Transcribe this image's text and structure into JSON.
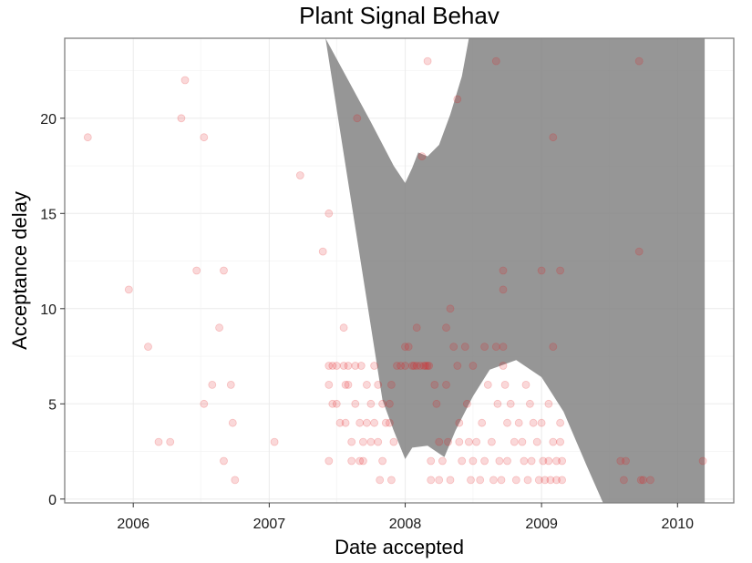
{
  "chart_data": {
    "type": "scatter",
    "title": "Plant Signal Behav",
    "xlabel": "Date accepted",
    "ylabel": "Acceptance delay",
    "x_ticks": [
      "2006",
      "2007",
      "2008",
      "2009",
      "2010"
    ],
    "y_ticks": [
      "0",
      "5",
      "10",
      "15",
      "20"
    ],
    "xlim": [
      "2005-07-01",
      "2010-06-01"
    ],
    "ylim": [
      -0.2,
      24.2
    ],
    "grid": true,
    "colors": {
      "points": "#e31a1c",
      "band": "#7f7f7f",
      "panel_border": "#7f7f7f",
      "grid": "#ebebeb"
    },
    "points": [
      [
        "2005-09-01",
        19
      ],
      [
        "2005-12-20",
        11
      ],
      [
        "2006-02-10",
        8
      ],
      [
        "2006-03-10",
        3
      ],
      [
        "2006-04-10",
        3
      ],
      [
        "2006-05-10",
        20
      ],
      [
        "2006-05-20",
        22
      ],
      [
        "2006-06-20",
        12
      ],
      [
        "2006-07-10",
        19
      ],
      [
        "2006-07-10",
        5
      ],
      [
        "2006-08-01",
        6
      ],
      [
        "2006-08-20",
        9
      ],
      [
        "2006-09-01",
        12
      ],
      [
        "2006-09-01",
        2
      ],
      [
        "2006-09-20",
        6
      ],
      [
        "2006-09-25",
        4
      ],
      [
        "2006-10-01",
        1
      ],
      [
        "2007-01-15",
        3
      ],
      [
        "2007-03-25",
        17
      ],
      [
        "2007-05-25",
        13
      ],
      [
        "2007-06-10",
        15
      ],
      [
        "2007-06-10",
        7
      ],
      [
        "2007-06-10",
        6
      ],
      [
        "2007-06-10",
        2
      ],
      [
        "2007-06-20",
        7
      ],
      [
        "2007-06-20",
        5
      ],
      [
        "2007-07-01",
        7
      ],
      [
        "2007-07-01",
        5
      ],
      [
        "2007-07-10",
        4
      ],
      [
        "2007-07-20",
        9
      ],
      [
        "2007-07-20",
        7
      ],
      [
        "2007-07-25",
        6
      ],
      [
        "2007-07-25",
        4
      ],
      [
        "2007-08-01",
        7
      ],
      [
        "2007-08-01",
        6
      ],
      [
        "2007-08-10",
        3
      ],
      [
        "2007-08-10",
        2
      ],
      [
        "2007-08-20",
        7
      ],
      [
        "2007-08-20",
        5
      ],
      [
        "2007-08-25",
        20
      ],
      [
        "2007-09-01",
        4
      ],
      [
        "2007-09-01",
        2
      ],
      [
        "2007-09-05",
        7
      ],
      [
        "2007-09-10",
        3
      ],
      [
        "2007-09-10",
        2
      ],
      [
        "2007-09-20",
        6
      ],
      [
        "2007-09-20",
        4
      ],
      [
        "2007-10-01",
        5
      ],
      [
        "2007-10-01",
        3
      ],
      [
        "2007-10-10",
        7
      ],
      [
        "2007-10-10",
        4
      ],
      [
        "2007-10-20",
        6
      ],
      [
        "2007-10-20",
        3
      ],
      [
        "2007-10-25",
        1
      ],
      [
        "2007-11-01",
        5
      ],
      [
        "2007-11-01",
        2
      ],
      [
        "2007-11-10",
        4
      ],
      [
        "2007-11-20",
        5
      ],
      [
        "2007-11-20",
        4
      ],
      [
        "2007-11-25",
        6
      ],
      [
        "2007-11-25",
        1
      ],
      [
        "2007-12-01",
        3
      ],
      [
        "2007-12-10",
        7
      ],
      [
        "2007-12-20",
        7
      ],
      [
        "2008-01-01",
        8
      ],
      [
        "2008-01-01",
        7
      ],
      [
        "2008-01-10",
        8
      ],
      [
        "2008-01-20",
        7
      ],
      [
        "2008-01-25",
        7
      ],
      [
        "2008-02-01",
        7
      ],
      [
        "2008-02-01",
        9
      ],
      [
        "2008-02-10",
        7
      ],
      [
        "2008-02-15",
        18
      ],
      [
        "2008-02-20",
        7
      ],
      [
        "2008-02-25",
        7
      ],
      [
        "2008-03-01",
        23
      ],
      [
        "2008-03-01",
        7
      ],
      [
        "2008-03-05",
        7
      ],
      [
        "2008-03-10",
        2
      ],
      [
        "2008-03-10",
        1
      ],
      [
        "2008-03-20",
        6
      ],
      [
        "2008-03-25",
        5
      ],
      [
        "2008-04-01",
        3
      ],
      [
        "2008-04-01",
        1
      ],
      [
        "2008-04-10",
        2
      ],
      [
        "2008-04-20",
        9
      ],
      [
        "2008-04-20",
        6
      ],
      [
        "2008-04-25",
        3
      ],
      [
        "2008-05-01",
        10
      ],
      [
        "2008-05-01",
        1
      ],
      [
        "2008-05-10",
        8
      ],
      [
        "2008-05-20",
        21
      ],
      [
        "2008-05-20",
        7
      ],
      [
        "2008-05-25",
        3
      ],
      [
        "2008-05-25",
        4
      ],
      [
        "2008-06-01",
        2
      ],
      [
        "2008-06-10",
        8
      ],
      [
        "2008-06-15",
        5
      ],
      [
        "2008-06-20",
        3
      ],
      [
        "2008-06-25",
        1
      ],
      [
        "2008-07-01",
        7
      ],
      [
        "2008-07-01",
        2
      ],
      [
        "2008-07-10",
        3
      ],
      [
        "2008-07-20",
        1
      ],
      [
        "2008-07-25",
        4
      ],
      [
        "2008-08-01",
        8
      ],
      [
        "2008-08-01",
        2
      ],
      [
        "2008-08-10",
        6
      ],
      [
        "2008-08-20",
        3
      ],
      [
        "2008-08-25",
        1
      ],
      [
        "2008-09-01",
        23
      ],
      [
        "2008-09-01",
        8
      ],
      [
        "2008-09-05",
        5
      ],
      [
        "2008-09-10",
        2
      ],
      [
        "2008-09-15",
        1
      ],
      [
        "2008-09-20",
        12
      ],
      [
        "2008-09-20",
        11
      ],
      [
        "2008-09-20",
        8
      ],
      [
        "2008-09-20",
        7
      ],
      [
        "2008-09-25",
        6
      ],
      [
        "2008-10-01",
        4
      ],
      [
        "2008-10-01",
        2
      ],
      [
        "2008-10-10",
        5
      ],
      [
        "2008-10-20",
        3
      ],
      [
        "2008-10-25",
        1
      ],
      [
        "2008-11-01",
        4
      ],
      [
        "2008-11-10",
        3
      ],
      [
        "2008-11-15",
        2
      ],
      [
        "2008-11-20",
        6
      ],
      [
        "2008-11-25",
        1
      ],
      [
        "2008-12-01",
        5
      ],
      [
        "2008-12-05",
        2
      ],
      [
        "2008-12-10",
        4
      ],
      [
        "2008-12-20",
        3
      ],
      [
        "2008-12-25",
        1
      ],
      [
        "2009-01-01",
        12
      ],
      [
        "2009-01-01",
        4
      ],
      [
        "2009-01-05",
        2
      ],
      [
        "2009-01-10",
        1
      ],
      [
        "2009-01-20",
        5
      ],
      [
        "2009-01-20",
        2
      ],
      [
        "2009-01-25",
        1
      ],
      [
        "2009-02-01",
        19
      ],
      [
        "2009-02-01",
        8
      ],
      [
        "2009-02-01",
        3
      ],
      [
        "2009-02-10",
        2
      ],
      [
        "2009-02-10",
        1
      ],
      [
        "2009-02-20",
        12
      ],
      [
        "2009-02-20",
        4
      ],
      [
        "2009-02-20",
        3
      ],
      [
        "2009-02-25",
        2
      ],
      [
        "2009-02-25",
        1
      ],
      [
        "2009-08-01",
        2
      ],
      [
        "2009-08-10",
        1
      ],
      [
        "2009-08-15",
        2
      ],
      [
        "2009-09-20",
        23
      ],
      [
        "2009-09-20",
        13
      ],
      [
        "2009-09-25",
        1
      ],
      [
        "2009-10-01",
        1
      ],
      [
        "2009-10-20",
        1
      ],
      [
        "2010-03-10",
        2
      ]
    ],
    "band_upper": [
      [
        "2007-06-01",
        24.2
      ],
      [
        "2007-08-01",
        22.0
      ],
      [
        "2007-10-01",
        19.8
      ],
      [
        "2007-12-01",
        17.5
      ],
      [
        "2008-01-01",
        16.6
      ],
      [
        "2008-01-20",
        17.4
      ],
      [
        "2008-02-05",
        18.2
      ],
      [
        "2008-03-01",
        18.0
      ],
      [
        "2008-04-01",
        18.6
      ],
      [
        "2008-05-01",
        20.2
      ],
      [
        "2008-06-01",
        22.2
      ],
      [
        "2008-06-20",
        24.2
      ],
      [
        "2010-03-15",
        24.2
      ]
    ],
    "band_lower": [
      [
        "2010-03-15",
        -0.2
      ],
      [
        "2009-06-15",
        -0.2
      ],
      [
        "2009-05-01",
        1.8
      ],
      [
        "2009-03-01",
        4.6
      ],
      [
        "2009-01-01",
        6.4
      ],
      [
        "2008-10-25",
        7.3
      ],
      [
        "2008-08-15",
        6.8
      ],
      [
        "2008-07-01",
        5.4
      ],
      [
        "2008-05-15",
        3.6
      ],
      [
        "2008-04-15",
        2.2
      ],
      [
        "2008-03-01",
        2.8
      ],
      [
        "2008-01-20",
        2.7
      ],
      [
        "2008-01-01",
        2.1
      ],
      [
        "2007-12-01",
        3.6
      ],
      [
        "2007-11-01",
        5.2
      ]
    ]
  }
}
